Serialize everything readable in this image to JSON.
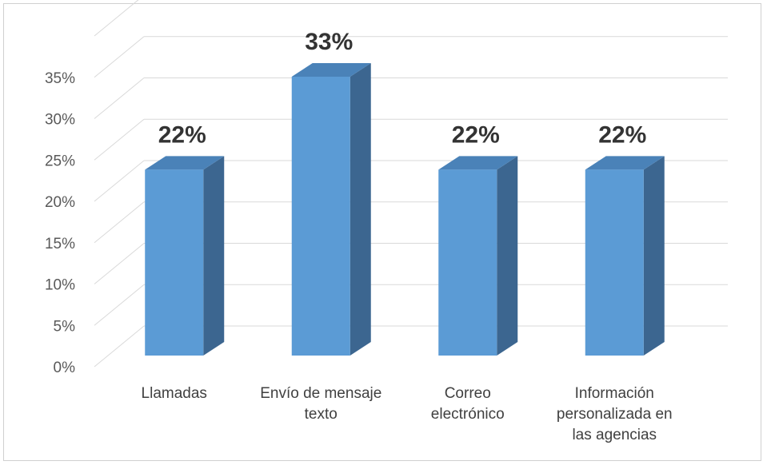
{
  "chart_data": {
    "type": "bar",
    "style": "3d-column",
    "categories": [
      [
        "Llamadas"
      ],
      [
        "Envío de mensaje",
        "texto"
      ],
      [
        "Correo",
        "electrónico"
      ],
      [
        "Información",
        "personalizada en",
        "las agencias"
      ]
    ],
    "values": [
      22,
      33,
      22,
      22
    ],
    "data_labels": [
      "22%",
      "33%",
      "22%",
      "22%"
    ],
    "y_ticks": [
      "0%",
      "5%",
      "10%",
      "15%",
      "20%",
      "25%",
      "30%",
      "35%"
    ],
    "ylim": [
      0,
      40
    ],
    "grid": true,
    "legend": "none",
    "colors": {
      "front": "#5b9bd5",
      "side": "#3c6690",
      "top": "#4a82b8",
      "grid": "#d9d9d9"
    }
  }
}
